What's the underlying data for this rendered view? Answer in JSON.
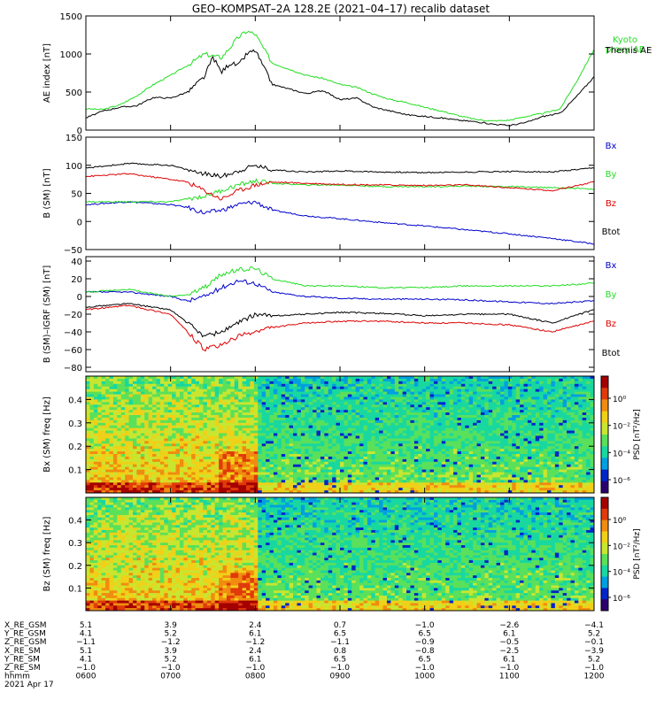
{
  "title": "GEO–KOMPSAT–2A 128.2E (2021–04–17) recalib dataset",
  "chart_data": [
    {
      "type": "line",
      "ylabel": "AE index [nT]",
      "ylim": [
        0,
        1500
      ],
      "yticks": [
        "0",
        "500",
        "1000",
        "1500"
      ],
      "legend_placement": "right",
      "series": [
        {
          "name": "Kyoto proxy AE",
          "color": "#22dd22",
          "x": [
            6.0,
            6.2,
            6.4,
            6.6,
            6.8,
            7.0,
            7.2,
            7.4,
            7.6,
            7.8,
            7.9,
            8.0,
            8.2,
            8.4,
            8.6,
            8.8,
            9.0,
            9.2,
            9.4,
            9.6,
            9.8,
            10.0,
            10.2,
            10.4,
            10.6,
            10.8,
            11.0,
            11.2,
            11.4,
            11.6,
            11.8,
            12.0
          ],
          "y": [
            280,
            270,
            330,
            450,
            600,
            720,
            850,
            1000,
            950,
            1220,
            1300,
            1260,
            880,
            800,
            720,
            680,
            600,
            560,
            470,
            400,
            360,
            300,
            250,
            190,
            140,
            120,
            130,
            180,
            220,
            280,
            650,
            1060
          ]
        },
        {
          "name": "Themis AE",
          "color": "#000000",
          "x": [
            6.0,
            6.2,
            6.4,
            6.6,
            6.8,
            7.0,
            7.2,
            7.4,
            7.5,
            7.6,
            7.7,
            7.8,
            7.9,
            8.0,
            8.2,
            8.4,
            8.6,
            8.8,
            9.0,
            9.2,
            9.4,
            9.6,
            9.8,
            10.0,
            10.2,
            10.4,
            10.6,
            10.8,
            11.0,
            11.2,
            11.4,
            11.6,
            11.8,
            12.0
          ],
          "y": [
            160,
            250,
            300,
            320,
            430,
            420,
            500,
            700,
            960,
            760,
            880,
            850,
            1000,
            1050,
            600,
            540,
            480,
            520,
            400,
            420,
            300,
            250,
            200,
            180,
            160,
            130,
            110,
            80,
            60,
            100,
            180,
            220,
            450,
            700
          ]
        }
      ]
    },
    {
      "type": "line",
      "ylabel": "B (SM) [nT]",
      "ylim": [
        -50,
        150
      ],
      "yticks": [
        "−50",
        "0",
        "50",
        "100",
        "150"
      ],
      "legend_placement": "right",
      "series": [
        {
          "name": "Bx",
          "color": "#0000cc",
          "x": [
            6.0,
            6.5,
            7.0,
            7.2,
            7.4,
            7.6,
            7.8,
            8.0,
            8.2,
            8.6,
            9.0,
            9.5,
            10.0,
            10.5,
            11.0,
            11.5,
            12.0
          ],
          "y": [
            30,
            35,
            30,
            25,
            15,
            20,
            30,
            35,
            20,
            10,
            5,
            -2,
            -8,
            -15,
            -22,
            -30,
            -40
          ]
        },
        {
          "name": "By",
          "color": "#22dd22",
          "x": [
            6.0,
            6.5,
            7.0,
            7.2,
            7.4,
            7.6,
            7.8,
            8.0,
            8.2,
            8.6,
            9.0,
            9.5,
            10.0,
            10.5,
            11.0,
            11.5,
            12.0
          ],
          "y": [
            35,
            35,
            35,
            40,
            45,
            55,
            65,
            72,
            68,
            65,
            65,
            62,
            62,
            63,
            62,
            60,
            58
          ]
        },
        {
          "name": "Bz",
          "color": "#dd0000",
          "x": [
            6.0,
            6.5,
            7.0,
            7.2,
            7.4,
            7.6,
            7.8,
            8.0,
            8.2,
            8.6,
            9.0,
            9.5,
            10.0,
            10.5,
            11.0,
            11.5,
            12.0
          ],
          "y": [
            80,
            85,
            75,
            70,
            55,
            40,
            55,
            65,
            70,
            68,
            66,
            65,
            64,
            65,
            60,
            55,
            70
          ]
        },
        {
          "name": "Btot",
          "color": "#000000",
          "x": [
            6.0,
            6.5,
            7.0,
            7.2,
            7.4,
            7.6,
            7.8,
            8.0,
            8.2,
            8.6,
            9.0,
            9.5,
            10.0,
            10.5,
            11.0,
            11.5,
            12.0
          ],
          "y": [
            95,
            103,
            100,
            92,
            85,
            80,
            90,
            100,
            92,
            88,
            90,
            88,
            87,
            88,
            89,
            88,
            95
          ]
        }
      ]
    },
    {
      "type": "line",
      "ylabel": "B (SM)–IGRF (SM) [nT]",
      "ylim": [
        -85,
        45
      ],
      "yticks": [
        "−80",
        "−60",
        "−40",
        "−20",
        "0",
        "20",
        "40"
      ],
      "legend_placement": "right",
      "series": [
        {
          "name": "Bx",
          "color": "#0000cc",
          "x": [
            6.0,
            6.5,
            7.0,
            7.2,
            7.4,
            7.6,
            7.8,
            8.0,
            8.2,
            8.6,
            9.0,
            9.5,
            10.0,
            10.5,
            11.0,
            11.5,
            12.0
          ],
          "y": [
            5,
            5,
            0,
            -5,
            0,
            10,
            18,
            15,
            5,
            0,
            -2,
            -3,
            -3,
            -4,
            -6,
            -8,
            -5
          ]
        },
        {
          "name": "By",
          "color": "#22dd22",
          "x": [
            6.0,
            6.5,
            7.0,
            7.2,
            7.4,
            7.6,
            7.8,
            8.0,
            8.2,
            8.6,
            9.0,
            9.5,
            10.0,
            10.5,
            11.0,
            11.5,
            12.0
          ],
          "y": [
            5,
            8,
            0,
            2,
            10,
            25,
            30,
            32,
            20,
            12,
            12,
            10,
            10,
            12,
            12,
            12,
            15
          ]
        },
        {
          "name": "Bz",
          "color": "#dd0000",
          "x": [
            6.0,
            6.5,
            7.0,
            7.2,
            7.4,
            7.6,
            7.8,
            8.0,
            8.2,
            8.6,
            9.0,
            9.5,
            10.0,
            10.5,
            11.0,
            11.5,
            12.0
          ],
          "y": [
            -15,
            -10,
            -20,
            -40,
            -60,
            -55,
            -45,
            -40,
            -35,
            -30,
            -28,
            -28,
            -30,
            -30,
            -32,
            -40,
            -28
          ]
        },
        {
          "name": "Btot",
          "color": "#000000",
          "x": [
            6.0,
            6.5,
            7.0,
            7.2,
            7.4,
            7.6,
            7.8,
            8.0,
            8.2,
            8.6,
            9.0,
            9.5,
            10.0,
            10.5,
            11.0,
            11.5,
            12.0
          ],
          "y": [
            -12,
            -8,
            -15,
            -30,
            -45,
            -40,
            -30,
            -20,
            -22,
            -20,
            -18,
            -19,
            -22,
            -20,
            -20,
            -30,
            -15
          ]
        }
      ]
    },
    {
      "type": "heatmap",
      "ylabel": "Bx (SM) freq [Hz]",
      "ylim": [
        0,
        0.5
      ],
      "yticks": [
        "0.1",
        "0.2",
        "0.3",
        "0.4"
      ],
      "colorbar_label": "PSD [nT²/Hz]",
      "colorbar_ticks": [
        "10⁰",
        "10⁻²",
        "10⁻⁴",
        "10⁻⁶"
      ]
    },
    {
      "type": "heatmap",
      "ylabel": "Bz (SM) freq [Hz]",
      "ylim": [
        0,
        0.5
      ],
      "yticks": [
        "0.1",
        "0.2",
        "0.3",
        "0.4"
      ],
      "colorbar_label": "PSD [nT²/Hz]",
      "colorbar_ticks": [
        "10⁰",
        "10⁻²",
        "10⁻⁴",
        "10⁻⁶"
      ]
    }
  ],
  "time_axis": {
    "row_labels": [
      "X_RE_GSM",
      "Y_RE_GSM",
      "Z_RE_GSM",
      "X_RE_SM",
      "Y_RE_SM",
      "Z_RE_SM",
      "hhmm"
    ],
    "date": "2021 Apr 17",
    "columns": [
      [
        "5.1",
        "4.1",
        "−1.1",
        "5.1",
        "4.1",
        "−1.0",
        "0600"
      ],
      [
        "3.9",
        "5.2",
        "−1.2",
        "3.9",
        "5.2",
        "−1.0",
        "0700"
      ],
      [
        "2.4",
        "6.1",
        "−1.2",
        "2.4",
        "6.1",
        "−1.0",
        "0800"
      ],
      [
        "0.7",
        "6.5",
        "−1.1",
        "0.8",
        "6.5",
        "−1.0",
        "0900"
      ],
      [
        "−1.0",
        "6.5",
        "−0.9",
        "−0.8",
        "6.5",
        "−1.0",
        "1000"
      ],
      [
        "−2.6",
        "6.1",
        "−0.5",
        "−2.5",
        "6.1",
        "−1.0",
        "1100"
      ],
      [
        "−4.1",
        "5.2",
        "−0.1",
        "−3.9",
        "5.2",
        "−1.0",
        "1200"
      ]
    ]
  }
}
